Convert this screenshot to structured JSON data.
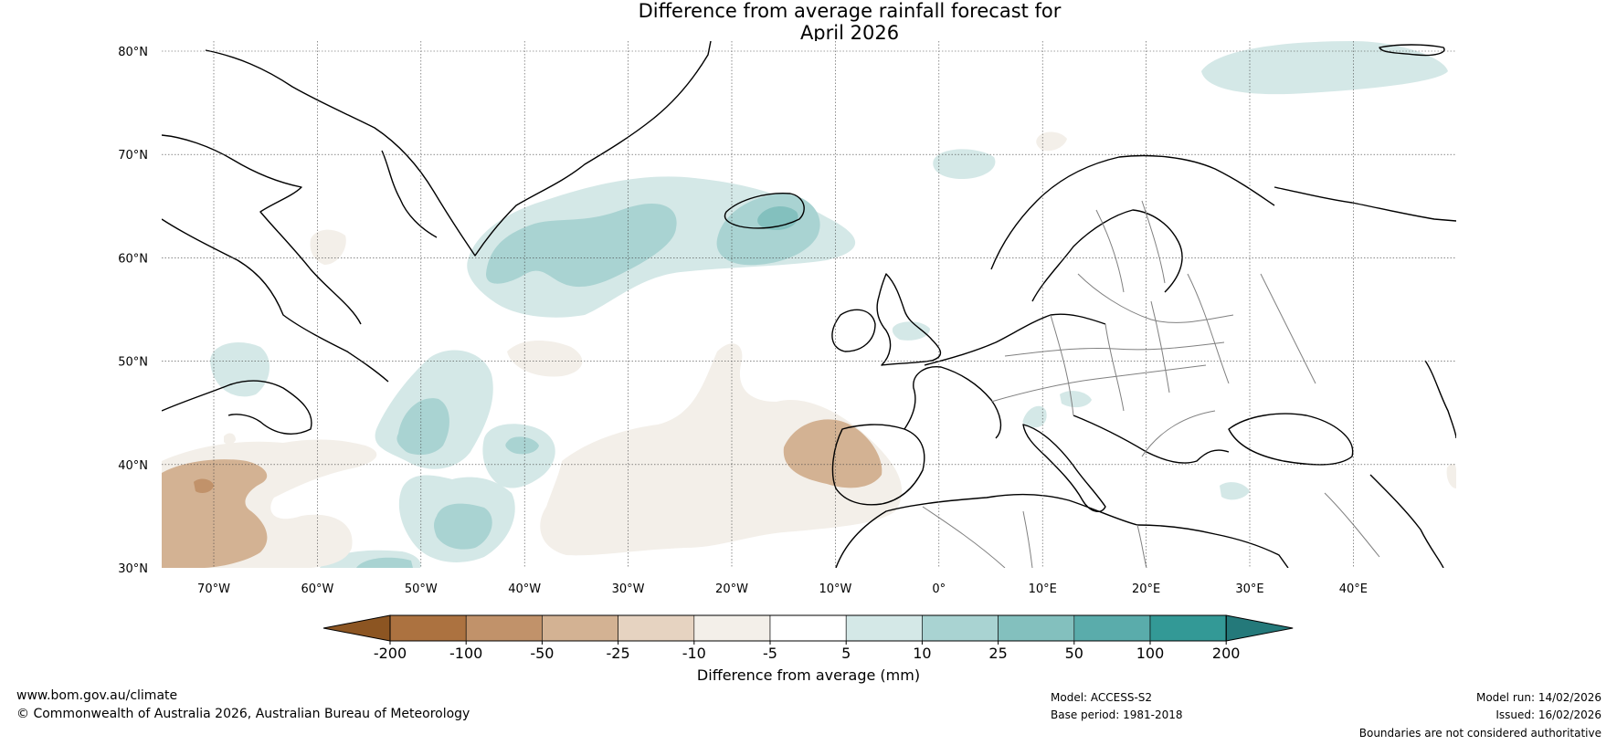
{
  "title": {
    "line1": "Difference from average rainfall forecast for",
    "line2": "April 2026"
  },
  "lat_labels": [
    "80°N",
    "70°N",
    "60°N",
    "50°N",
    "40°N",
    "30°N"
  ],
  "lon_labels": [
    "70°W",
    "60°W",
    "50°W",
    "40°W",
    "30°W",
    "20°W",
    "10°W",
    "0°",
    "10°E",
    "20°E",
    "30°E",
    "40°E"
  ],
  "colorbar": {
    "label": "Difference from average (mm)",
    "ticks": [
      "-200",
      "-100",
      "-50",
      "-25",
      "-10",
      "-5",
      "5",
      "10",
      "25",
      "50",
      "100",
      "200"
    ],
    "colors": {
      "below_min": "#8c5522",
      "c1": "#ac7240",
      "c2": "#c1926a",
      "c3": "#d3b293",
      "c4": "#e6d3c1",
      "c5": "#f3efe9",
      "c6": "#ffffff",
      "c7": "#d4e8e7",
      "c8": "#a9d3d2",
      "c9": "#83c0be",
      "c10": "#5aacab",
      "c11": "#339996",
      "above_max": "#24797a"
    }
  },
  "footer": {
    "url": "www.bom.gov.au/climate",
    "copyright": "© Commonwealth of Australia 2026, Australian Bureau of Meteorology",
    "model": "Model: ACCESS-S2",
    "base_period": "Base period: 1981-2018",
    "model_run": "Model run: 14/02/2026",
    "issued": "Issued: 16/02/2026",
    "disclaimer": "Boundaries are not considered authoritative"
  }
}
